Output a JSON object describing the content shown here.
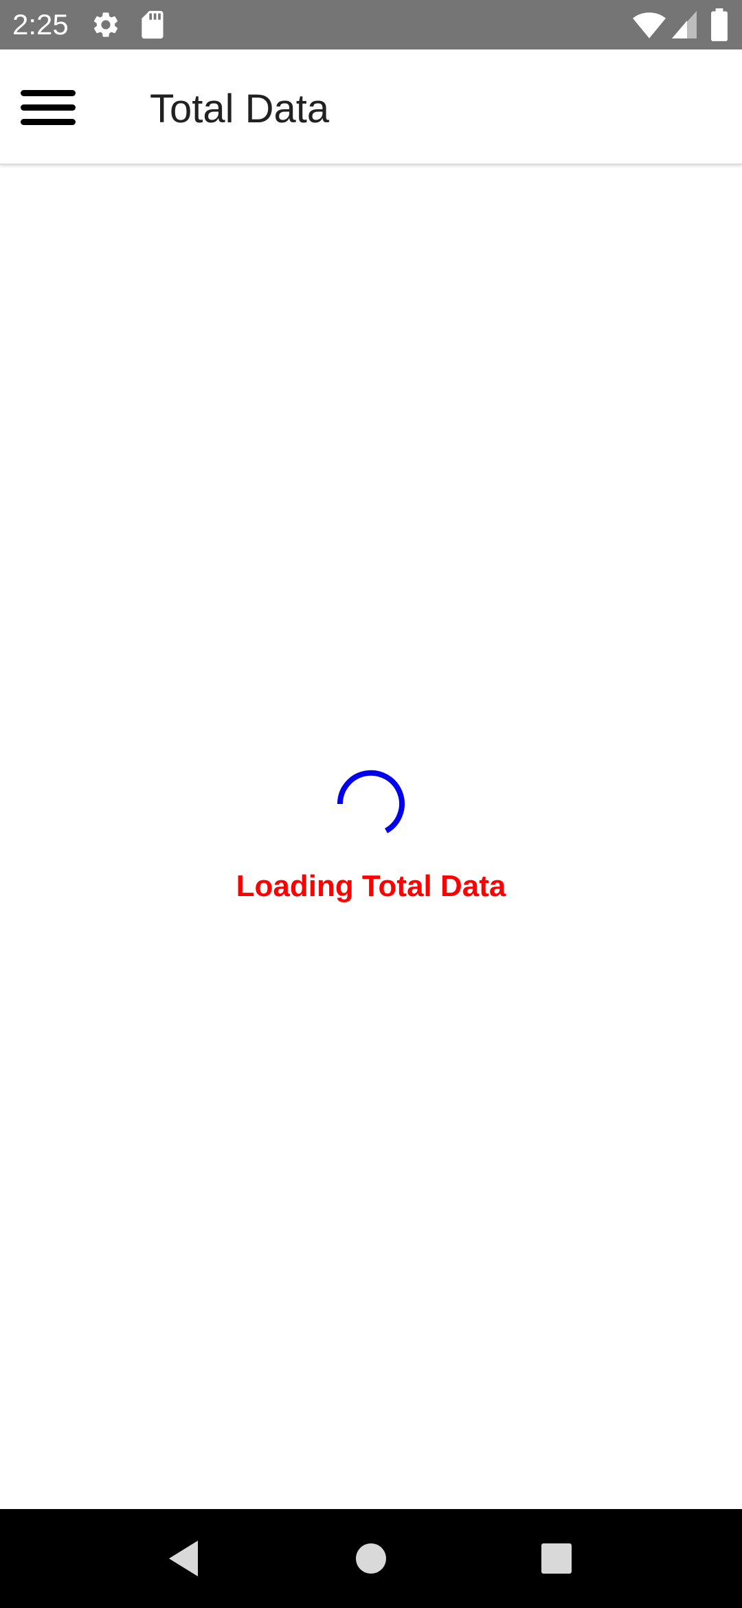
{
  "status_bar": {
    "time": "2:25",
    "icons": [
      "gear-icon",
      "sd-card-icon",
      "wifi-icon",
      "signal-icon",
      "battery-icon"
    ]
  },
  "app_bar": {
    "title": "Total Data",
    "menu_icon": "hamburger-menu-icon"
  },
  "loading": {
    "message": "Loading Total Data",
    "spinner_color": "#0000ee",
    "message_color": "#ff0000"
  },
  "nav_bar": {
    "buttons": [
      "back-icon",
      "home-icon",
      "recents-icon"
    ]
  }
}
